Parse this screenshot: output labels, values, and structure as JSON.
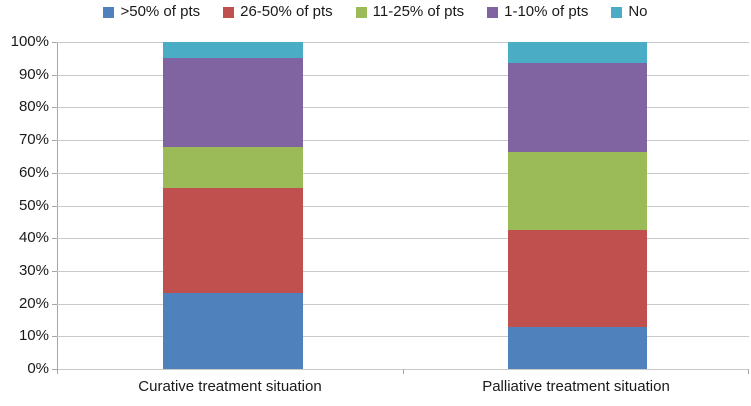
{
  "chart_data": {
    "type": "bar",
    "subtype": "stacked-100-percent",
    "title": "",
    "xlabel": "",
    "ylabel": "",
    "ylim": [
      0,
      100
    ],
    "grid": true,
    "legend_position": "top",
    "yticks": [
      "0%",
      "10%",
      "20%",
      "30%",
      "40%",
      "50%",
      "60%",
      "70%",
      "80%",
      "90%",
      "100%"
    ],
    "ytick_values": [
      0,
      10,
      20,
      30,
      40,
      50,
      60,
      70,
      80,
      90,
      100
    ],
    "categories": [
      "Curative treatment situation",
      "Palliative treatment situation"
    ],
    "series": [
      {
        "name": ">50% of pts",
        "color": "#4F81BD",
        "values": [
          23.2,
          12.8
        ]
      },
      {
        "name": "26-50% of pts",
        "color": "#C0504D",
        "values": [
          32.1,
          29.8
        ]
      },
      {
        "name": "11-25% of pts",
        "color": "#9BBB59",
        "values": [
          12.5,
          23.7
        ]
      },
      {
        "name": "1-10% of pts",
        "color": "#8064A2",
        "values": [
          27.2,
          27.3
        ]
      },
      {
        "name": "No",
        "color": "#4BACC6",
        "values": [
          5.0,
          6.4
        ]
      }
    ]
  }
}
